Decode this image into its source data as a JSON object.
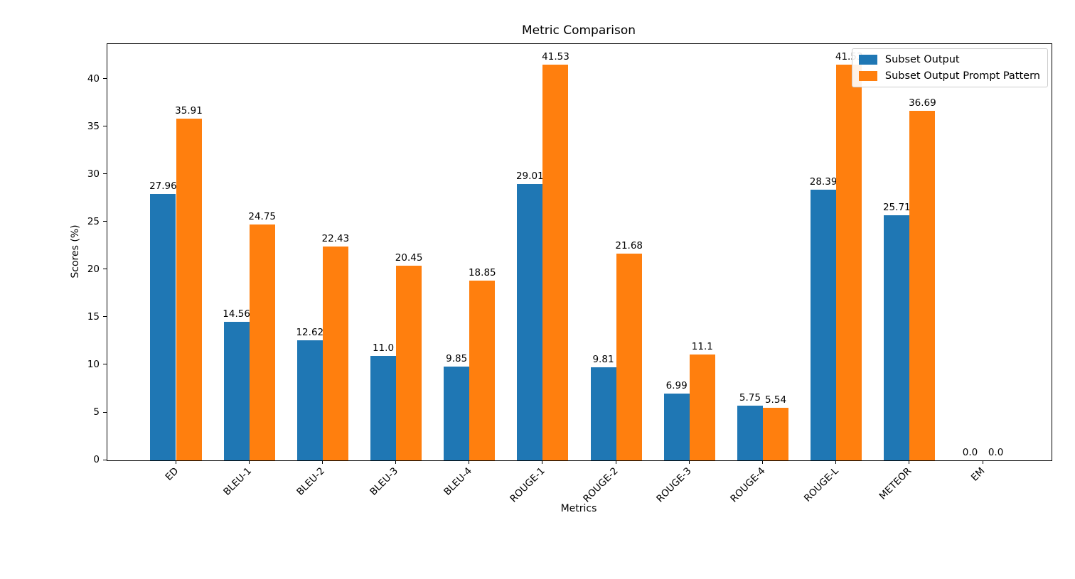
{
  "figure": {
    "background": "#ffffff"
  },
  "chart_data": {
    "type": "bar",
    "title": "Metric Comparison",
    "xlabel": "Metrics",
    "ylabel": "Scores (%)",
    "categories": [
      "ED",
      "BLEU-1",
      "BLEU-2",
      "BLEU-3",
      "BLEU-4",
      "ROUGE-1",
      "ROUGE-2",
      "ROUGE-3",
      "ROUGE-4",
      "ROUGE-L",
      "METEOR",
      "EM"
    ],
    "series": [
      {
        "name": "Subset Output",
        "color": "#1f77b4",
        "values": [
          27.96,
          14.56,
          12.62,
          11.0,
          9.85,
          29.01,
          9.81,
          6.99,
          5.75,
          28.39,
          25.71,
          0.0
        ],
        "labels": [
          "27.96",
          "14.56",
          "12.62",
          "11.0",
          "9.85",
          "29.01",
          "9.81",
          "6.99",
          "5.75",
          "28.39",
          "25.71",
          "0.0"
        ]
      },
      {
        "name": "Subset Output Prompt Pattern",
        "color": "#ff7f0e",
        "values": [
          35.91,
          24.75,
          22.43,
          20.45,
          18.85,
          41.53,
          21.68,
          11.1,
          5.54,
          41.53,
          36.69,
          0.0
        ],
        "labels": [
          "35.91",
          "24.75",
          "22.43",
          "20.45",
          "18.85",
          "41.53",
          "21.68",
          "11.1",
          "5.54",
          "41.53",
          "36.69",
          "0.0"
        ]
      }
    ],
    "yticks": [
      0,
      5,
      10,
      15,
      20,
      25,
      30,
      35,
      40
    ],
    "ylim": [
      0,
      43.7
    ],
    "xlim": [
      -0.935,
      11.935
    ],
    "bar_width": 0.35,
    "grid": false,
    "legend_position": "upper right"
  }
}
